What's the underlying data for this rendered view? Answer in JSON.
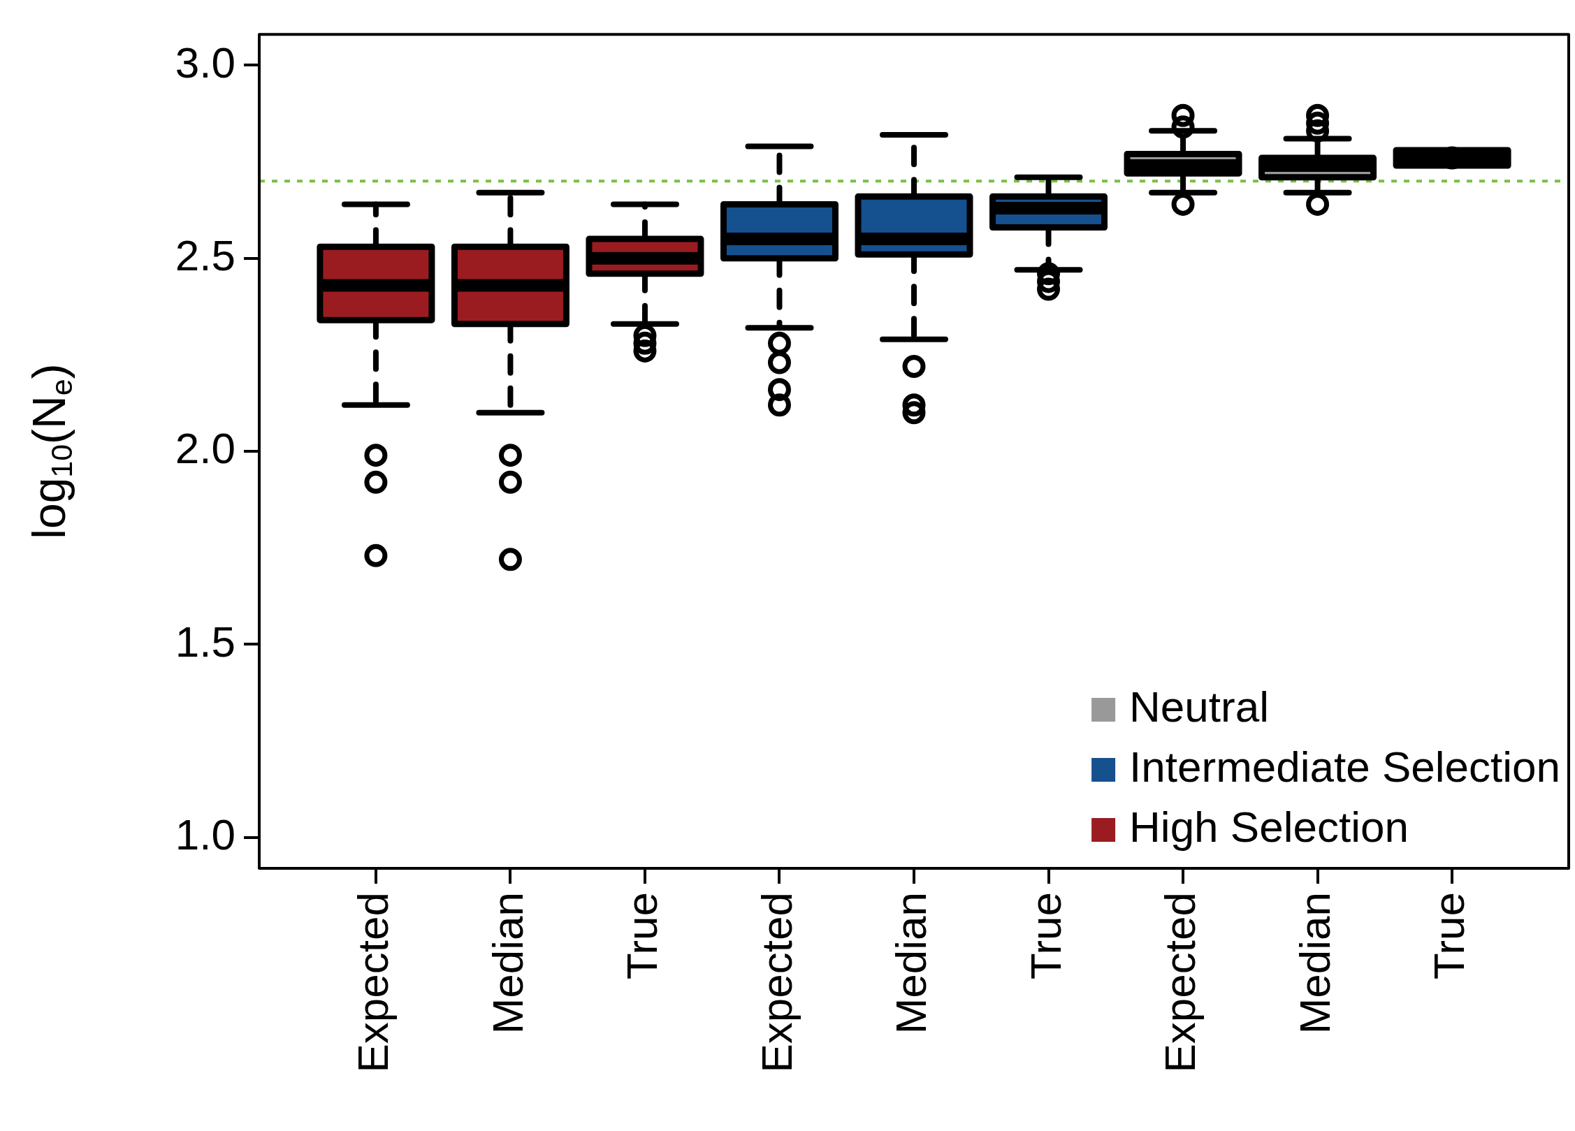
{
  "chart_data": {
    "type": "box",
    "ylabel": "log$_{10}$(N$_{e}$)",
    "categories": [
      "Expected",
      "Median",
      "True",
      "Expected",
      "Median",
      "True",
      "Expected",
      "Median",
      "True"
    ],
    "ylim": [
      0.92,
      3.08
    ],
    "yticks": [
      {
        "value": 1,
        "label": "1.0"
      },
      {
        "value": 1.5,
        "label": "1.5"
      },
      {
        "value": 2,
        "label": "2.0"
      },
      {
        "value": 2.5,
        "label": "2.5"
      },
      {
        "value": 3,
        "label": "3.0"
      }
    ],
    "legend": "bottom right",
    "ref_lines": [
      {
        "axis": "y",
        "value": 2.7,
        "color": "#77c043",
        "line_style": "dotted"
      }
    ],
    "series": [
      {
        "name": "Neutral",
        "color": "#999999",
        "boxes": [
          null,
          null,
          null,
          null,
          null,
          null,
          {
            "low": 2.67,
            "q1": 2.72,
            "median": 2.74,
            "q3": 2.77,
            "high": 2.83,
            "outliers": [
              2.87,
              2.84,
              2.64
            ]
          },
          {
            "low": 2.67,
            "q1": 2.71,
            "median": 2.74,
            "q3": 2.76,
            "high": 2.81,
            "outliers": [
              2.87,
              2.85,
              2.83,
              2.64
            ]
          },
          {
            "low": 2.74,
            "q1": 2.74,
            "median": 2.76,
            "q3": 2.78,
            "high": 2.78,
            "outliers": [
              2.76
            ]
          }
        ]
      },
      {
        "name": "Intermediate Selection",
        "color": "#15508f",
        "boxes": [
          null,
          null,
          null,
          {
            "low": 2.32,
            "q1": 2.5,
            "median": 2.55,
            "q3": 2.64,
            "high": 2.79,
            "outliers": [
              2.28,
              2.23,
              2.16,
              2.12
            ]
          },
          {
            "low": 2.29,
            "q1": 2.51,
            "median": 2.55,
            "q3": 2.66,
            "high": 2.82,
            "outliers": [
              2.22,
              2.12,
              2.1
            ]
          },
          {
            "low": 2.47,
            "q1": 2.58,
            "median": 2.63,
            "q3": 2.66,
            "high": 2.71,
            "outliers": [
              2.46,
              2.44,
              2.42
            ]
          },
          null,
          null,
          null
        ]
      },
      {
        "name": "High Selection",
        "color": "#9b1c20",
        "boxes": [
          {
            "low": 2.12,
            "q1": 2.34,
            "median": 2.43,
            "q3": 2.53,
            "high": 2.64,
            "outliers": [
              1.99,
              1.92,
              1.73
            ]
          },
          {
            "low": 2.1,
            "q1": 2.33,
            "median": 2.43,
            "q3": 2.53,
            "high": 2.67,
            "outliers": [
              1.99,
              1.92,
              1.72
            ]
          },
          {
            "low": 2.33,
            "q1": 2.46,
            "median": 2.5,
            "q3": 2.55,
            "high": 2.64,
            "outliers": [
              2.3,
              2.28,
              2.26
            ]
          },
          null,
          null,
          null,
          null,
          null,
          null
        ]
      }
    ]
  }
}
